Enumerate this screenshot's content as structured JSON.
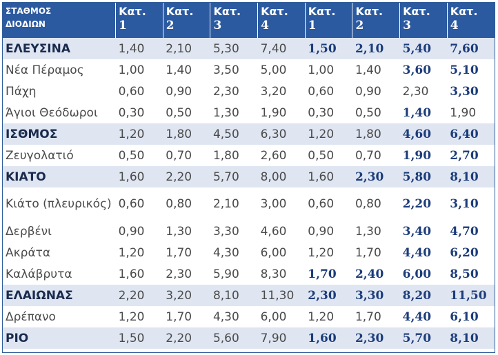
{
  "header": {
    "station_line1": "ΣΤΑΘΜΟΣ",
    "station_line2": "ΔΙΟΔΙΩΝ",
    "cols": [
      {
        "l1": "Κατ.",
        "l2": "1"
      },
      {
        "l1": "Κατ.",
        "l2": "2"
      },
      {
        "l1": "Κατ.",
        "l2": "3"
      },
      {
        "l1": "Κατ.",
        "l2": "4"
      },
      {
        "l1": "Κατ.",
        "l2": "1"
      },
      {
        "l1": "Κατ.",
        "l2": "2"
      },
      {
        "l1": "Κατ.",
        "l2": "3"
      },
      {
        "l1": "Κατ.",
        "l2": "4"
      }
    ]
  },
  "colors": {
    "header_bg": "#2b5aa0",
    "major_row_bg": "#dfe6f2",
    "bold_value": "#1c3c7a"
  },
  "rows": [
    {
      "name": "ΕΛΕΥΣΙΝΑ",
      "major": true,
      "values": [
        "1,40",
        "2,10",
        "5,30",
        "7,40",
        "1,50",
        "2,10",
        "5,40",
        "7,60"
      ],
      "bold": [
        false,
        false,
        false,
        false,
        true,
        true,
        true,
        true
      ]
    },
    {
      "name": "Νέα Πέραμος",
      "major": false,
      "values": [
        "1,00",
        "1,40",
        "3,50",
        "5,00",
        "1,00",
        "1,40",
        "3,60",
        "5,10"
      ],
      "bold": [
        false,
        false,
        false,
        false,
        false,
        false,
        true,
        true
      ]
    },
    {
      "name": "Πάχη",
      "major": false,
      "values": [
        "0,60",
        "0,90",
        "2,30",
        "3,20",
        "0,60",
        "0,90",
        "2,30",
        "3,30"
      ],
      "bold": [
        false,
        false,
        false,
        false,
        false,
        false,
        false,
        true
      ]
    },
    {
      "name": "Άγιοι Θεόδωροι",
      "major": false,
      "values": [
        "0,30",
        "0,50",
        "1,30",
        "1,90",
        "0,30",
        "0,50",
        "1,40",
        "1,90"
      ],
      "bold": [
        false,
        false,
        false,
        false,
        false,
        false,
        true,
        false
      ]
    },
    {
      "name": "ΙΣΘΜΟΣ",
      "major": true,
      "values": [
        "1,20",
        "1,80",
        "4,50",
        "6,30",
        "1,20",
        "1,80",
        "4,60",
        "6,40"
      ],
      "bold": [
        false,
        false,
        false,
        false,
        false,
        false,
        true,
        true
      ]
    },
    {
      "name": "Ζευγολατιό",
      "major": false,
      "values": [
        "0,50",
        "0,70",
        "1,80",
        "2,60",
        "0,50",
        "0,70",
        "1,90",
        "2,70"
      ],
      "bold": [
        false,
        false,
        false,
        false,
        false,
        false,
        true,
        true
      ]
    },
    {
      "name": "ΚΙΑΤΟ",
      "major": true,
      "values": [
        "1,60",
        "2,20",
        "5,70",
        "8,00",
        "1,60",
        "2,30",
        "5,80",
        "8,10"
      ],
      "bold": [
        false,
        false,
        false,
        false,
        false,
        true,
        true,
        true
      ]
    },
    {
      "name": "Κιάτο (πλευρικός)",
      "major": false,
      "tall": true,
      "values": [
        "0,60",
        "0,80",
        "2,10",
        "3,00",
        "0,60",
        "0,80",
        "2,20",
        "3,10"
      ],
      "bold": [
        false,
        false,
        false,
        false,
        false,
        false,
        true,
        true
      ]
    },
    {
      "name": "Δερβένι",
      "major": false,
      "values": [
        "0,90",
        "1,30",
        "3,30",
        "4,60",
        "0,90",
        "1,30",
        "3,40",
        "4,70"
      ],
      "bold": [
        false,
        false,
        false,
        false,
        false,
        false,
        true,
        true
      ]
    },
    {
      "name": "Ακράτα",
      "major": false,
      "values": [
        "1,20",
        "1,70",
        "4,30",
        "6,00",
        "1,20",
        "1,70",
        "4,40",
        "6,20"
      ],
      "bold": [
        false,
        false,
        false,
        false,
        false,
        false,
        true,
        true
      ]
    },
    {
      "name": "Καλάβρυτα",
      "major": false,
      "values": [
        "1,60",
        "2,30",
        "5,90",
        "8,30",
        "1,70",
        "2,40",
        "6,00",
        "8,50"
      ],
      "bold": [
        false,
        false,
        false,
        false,
        true,
        true,
        true,
        true
      ]
    },
    {
      "name": "ΕΛΑΙΩΝΑΣ",
      "major": true,
      "values": [
        "2,20",
        "3,20",
        "8,10",
        "11,30",
        "2,30",
        "3,30",
        "8,20",
        "11,50"
      ],
      "bold": [
        false,
        false,
        false,
        false,
        true,
        true,
        true,
        true
      ]
    },
    {
      "name": "Δρέπανο",
      "major": false,
      "values": [
        "1,20",
        "1,70",
        "4,30",
        "6,00",
        "1,20",
        "1,70",
        "4,40",
        "6,10"
      ],
      "bold": [
        false,
        false,
        false,
        false,
        false,
        false,
        true,
        true
      ]
    },
    {
      "name": "ΡΙΟ",
      "major": true,
      "values": [
        "1,50",
        "2,20",
        "5,60",
        "7,90",
        "1,60",
        "2,30",
        "5,70",
        "8,10"
      ],
      "bold": [
        false,
        false,
        false,
        false,
        true,
        true,
        true,
        true
      ]
    }
  ]
}
